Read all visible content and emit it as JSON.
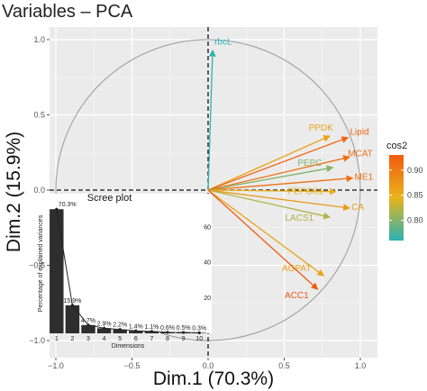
{
  "chart_data": [
    {
      "type": "scatter",
      "subtype": "pca-variable-correlation-circle",
      "title": "Variables – PCA",
      "xlabel": "Dim.1 (70.3%)",
      "ylabel": "Dim.2 (15.9%)",
      "xlim": [
        -1.0,
        1.0
      ],
      "ylim": [
        -1.0,
        1.0
      ],
      "xticks": [
        -1.0,
        -0.5,
        0.0,
        0.5,
        1.0
      ],
      "yticks": [
        -1.0,
        -0.5,
        0.0,
        0.5,
        1.0
      ],
      "x_tick_labels": [
        "−1.0",
        "−0.5",
        "0.0",
        "0.5",
        "1.0"
      ],
      "y_tick_labels": [
        "−1.0",
        "−0.5",
        "0.0",
        "0.5",
        "1.0"
      ],
      "grid": true,
      "unit_circle": true,
      "variables": [
        {
          "name": "rbcL",
          "x": 0.03,
          "y": 0.93,
          "cos2": 0.76
        },
        {
          "name": "PPDK",
          "x": 0.8,
          "y": 0.36,
          "cos2": 0.86
        },
        {
          "name": "Lipid",
          "x": 0.92,
          "y": 0.35,
          "cos2": 0.92
        },
        {
          "name": "MCAT",
          "x": 0.93,
          "y": 0.22,
          "cos2": 0.91
        },
        {
          "name": "PEPC",
          "x": 0.82,
          "y": 0.15,
          "cos2": 0.8
        },
        {
          "name": "ME1",
          "x": 0.95,
          "y": 0.08,
          "cos2": 0.91
        },
        {
          "name": "PEPCK1",
          "x": 0.84,
          "y": -0.01,
          "cos2": 0.85
        },
        {
          "name": "CA",
          "x": 0.93,
          "y": -0.12,
          "cos2": 0.87
        },
        {
          "name": "LACS1",
          "x": 0.8,
          "y": -0.18,
          "cos2": 0.82
        },
        {
          "name": "AGPAT",
          "x": 0.76,
          "y": -0.57,
          "cos2": 0.86
        },
        {
          "name": "ACC1",
          "x": 0.72,
          "y": -0.66,
          "cos2": 0.93
        }
      ],
      "legend": {
        "title": "cos2",
        "placement": "right",
        "ticks": [
          0.8,
          0.85,
          0.9
        ],
        "tick_labels": [
          "0.80",
          "0.85",
          "0.90"
        ],
        "range": [
          0.76,
          0.93
        ],
        "colors": [
          "#2ab3b3",
          "#e8b41c",
          "#f25a10"
        ]
      }
    },
    {
      "type": "bar",
      "subtype": "inset-scree-plot",
      "title": "Scree plot",
      "xlabel": "Dimensions",
      "ylabel": "Percentage of explained variances",
      "categories": [
        "1",
        "2",
        "3",
        "4",
        "5",
        "6",
        "7",
        "8",
        "9",
        "10"
      ],
      "values": [
        70.3,
        15.9,
        4.7,
        2.9,
        2.2,
        1.4,
        1.1,
        0.6,
        0.5,
        0.3
      ],
      "data_labels": [
        "70.3%",
        "15.9%",
        "4.7%",
        "2.9%",
        "2.2%",
        "1.4%",
        "1.1%",
        "0.6%",
        "0.5%",
        "0.3%"
      ],
      "ylim": [
        0,
        75
      ],
      "yticks": [
        20,
        40,
        60
      ],
      "y_tick_labels": [
        "20",
        "40",
        "60"
      ],
      "line_overlay": true,
      "bar_color": "#2e2e2e"
    }
  ]
}
